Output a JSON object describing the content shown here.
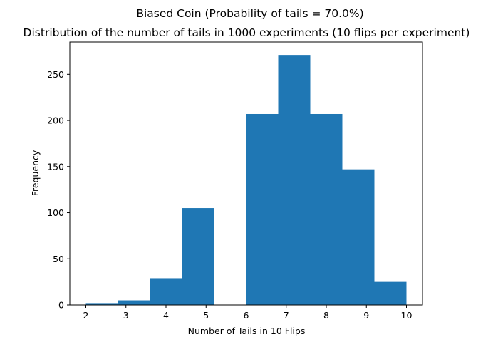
{
  "chart_data": {
    "type": "bar",
    "suptitle": "Biased Coin (Probability of tails = 70.0%)",
    "title": "Distribution of the number of tails in 1000 experiments (10 flips per experiment)",
    "xlabel": "Number of Tails in 10 Flips",
    "ylabel": "Frequency",
    "bin_edges": [
      2.0,
      2.8,
      3.6,
      4.4,
      5.2,
      6.0,
      6.8,
      7.6,
      8.4,
      9.2,
      10.0
    ],
    "values": [
      2,
      5,
      29,
      105,
      0,
      207,
      271,
      207,
      147,
      25
    ],
    "xlim": [
      1.6,
      10.4
    ],
    "ylim": [
      0,
      285
    ],
    "xticks": [
      2,
      3,
      4,
      5,
      6,
      7,
      8,
      9,
      10
    ],
    "yticks": [
      0,
      50,
      100,
      150,
      200,
      250
    ],
    "bar_color": "#1f77b4",
    "grid": false,
    "legend": "none"
  }
}
